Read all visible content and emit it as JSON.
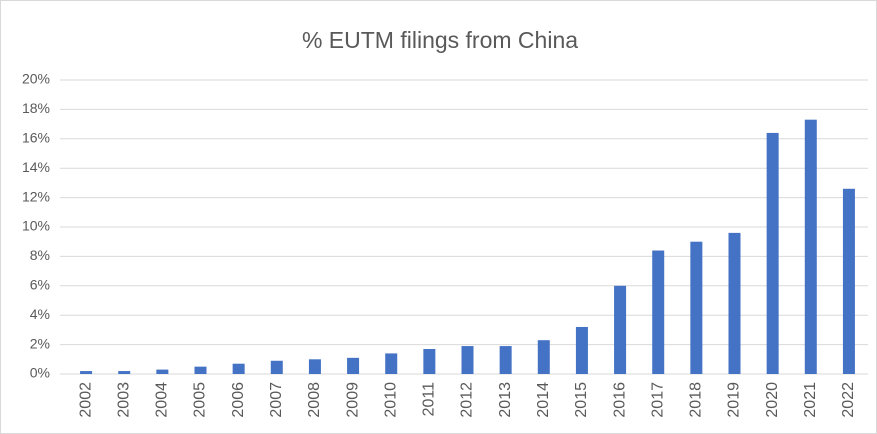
{
  "chart_data": {
    "type": "bar",
    "title": "% EUTM filings from China",
    "categories": [
      "2002",
      "2003",
      "2004",
      "2005",
      "2006",
      "2007",
      "2008",
      "2009",
      "2010",
      "2011",
      "2012",
      "2013",
      "2014",
      "2015",
      "2016",
      "2017",
      "2018",
      "2019",
      "2020",
      "2021",
      "2022"
    ],
    "values": [
      0.2,
      0.2,
      0.3,
      0.5,
      0.7,
      0.9,
      1.0,
      1.1,
      1.4,
      1.7,
      1.9,
      1.9,
      2.3,
      3.2,
      6.0,
      8.4,
      9.0,
      9.6,
      16.4,
      17.3,
      12.6
    ],
    "color": "#4472c4",
    "ylim": [
      0,
      20
    ],
    "yticks": [
      {
        "value": 0,
        "label": "0%"
      },
      {
        "value": 2,
        "label": "2%"
      },
      {
        "value": 4,
        "label": "4%"
      },
      {
        "value": 6,
        "label": "6%"
      },
      {
        "value": 8,
        "label": "8%"
      },
      {
        "value": 10,
        "label": "10%"
      },
      {
        "value": 12,
        "label": "12%"
      },
      {
        "value": 14,
        "label": "14%"
      },
      {
        "value": 16,
        "label": "16%"
      },
      {
        "value": 18,
        "label": "18%"
      },
      {
        "value": 20,
        "label": "20%"
      }
    ],
    "grid": true
  }
}
